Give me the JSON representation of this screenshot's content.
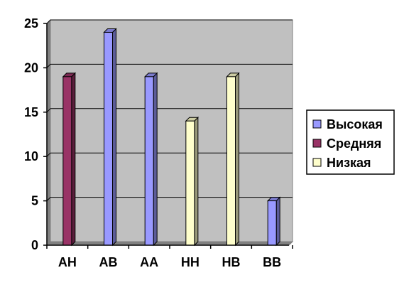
{
  "chart_data": {
    "type": "bar",
    "categories": [
      "АН",
      "АВ",
      "АА",
      "НН",
      "НВ",
      "ВВ"
    ],
    "series": [
      {
        "name": "Высокая",
        "color": "#9999ff",
        "values": [
          0,
          24,
          19,
          0,
          0,
          5
        ]
      },
      {
        "name": "Средняя",
        "color": "#993366",
        "values": [
          19,
          0,
          0,
          0,
          0,
          0
        ]
      },
      {
        "name": "Низкая",
        "color": "#ffffcc",
        "values": [
          0,
          0,
          0,
          14,
          19,
          0
        ]
      }
    ],
    "ylim": [
      0,
      25
    ],
    "yticks": [
      0,
      5,
      10,
      15,
      20,
      25
    ],
    "grid": true,
    "legend_position": "right",
    "plot_background": "#c0c0c0"
  }
}
